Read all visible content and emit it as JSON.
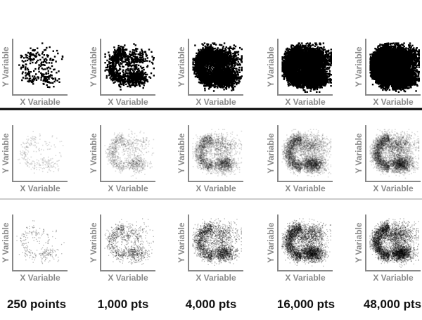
{
  "axis": {
    "x_label": "X Variable",
    "y_label": "Y Variable"
  },
  "columns": [
    "250 points",
    "1,000 pts",
    "4,000 pts",
    "16,000 pts",
    "48,000 pts"
  ]
}
